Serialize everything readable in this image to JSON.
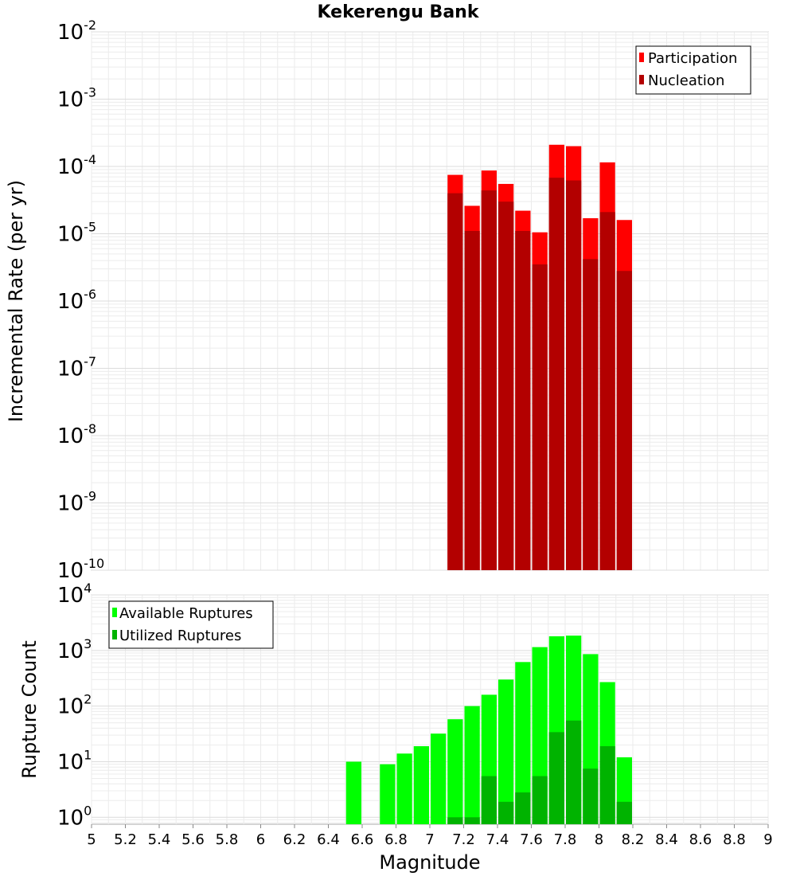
{
  "chart_data": [
    {
      "type": "bar",
      "title": "Kekerengu Bank",
      "xlabel": "Magnitude",
      "ylabel": "Incremental Rate (per yr)",
      "yscale": "log",
      "xlim": [
        5,
        9
      ],
      "ylim": [
        1e-10,
        0.01
      ],
      "x_tick_values": [
        5,
        5.2,
        5.4,
        5.6,
        5.8,
        6,
        6.2,
        6.4,
        6.6,
        6.8,
        7,
        7.2,
        7.4,
        7.6,
        7.8,
        8,
        8.2,
        8.4,
        8.6,
        8.8,
        9
      ],
      "x_tick_labels": [
        "5",
        "5.2",
        "5.4",
        "5.6",
        "5.8",
        "6",
        "6.2",
        "6.4",
        "6.6",
        "6.8",
        "7",
        "7.2",
        "7.4",
        "7.6",
        "7.8",
        "8",
        "8.2",
        "8.4",
        "8.6",
        "8.8",
        "9"
      ],
      "y_ticks": [
        {
          "base": "10",
          "exp": "-2",
          "value": 0.01
        },
        {
          "base": "10",
          "exp": "-3",
          "value": 0.001
        },
        {
          "base": "10",
          "exp": "-4",
          "value": 0.0001
        },
        {
          "base": "10",
          "exp": "-5",
          "value": 1e-05
        },
        {
          "base": "10",
          "exp": "-6",
          "value": 1e-06
        },
        {
          "base": "10",
          "exp": "-7",
          "value": 1e-07
        },
        {
          "base": "10",
          "exp": "-8",
          "value": 1e-08
        },
        {
          "base": "10",
          "exp": "-9",
          "value": 1e-09
        },
        {
          "base": "10",
          "exp": "-10",
          "value": 1e-10
        }
      ],
      "grid": true,
      "legend_position": "top-right",
      "bin_width": 0.1,
      "x": [
        7.15,
        7.25,
        7.35,
        7.45,
        7.55,
        7.65,
        7.75,
        7.85,
        7.95,
        8.05,
        8.15
      ],
      "series": [
        {
          "name": "Participation",
          "color": "#ff0000",
          "values": [
            7.5e-05,
            2.6e-05,
            8.7e-05,
            5.5e-05,
            2.2e-05,
            1.05e-05,
            0.00021,
            0.0002,
            1.7e-05,
            0.000115,
            1.6e-05
          ]
        },
        {
          "name": "Nucleation",
          "color": "#b30000",
          "values": [
            4e-05,
            1.1e-05,
            4.4e-05,
            3e-05,
            1.1e-05,
            3.5e-06,
            6.8e-05,
            6.2e-05,
            4.2e-06,
            2.1e-05,
            2.8e-06
          ]
        }
      ]
    },
    {
      "type": "bar",
      "title": "",
      "xlabel": "Magnitude",
      "ylabel": "Rupture Count",
      "yscale": "log",
      "xlim": [
        5,
        9
      ],
      "ylim": [
        0.75,
        10000.0
      ],
      "y_ticks": [
        {
          "base": "10",
          "exp": "4",
          "value": 10000.0
        },
        {
          "base": "10",
          "exp": "3",
          "value": 1000.0
        },
        {
          "base": "10",
          "exp": "2",
          "value": 100.0
        },
        {
          "base": "10",
          "exp": "1",
          "value": 10.0
        },
        {
          "base": "10",
          "exp": "0",
          "value": 1
        }
      ],
      "grid": true,
      "legend_position": "top-left",
      "bin_width": 0.1,
      "x": [
        6.55,
        6.75,
        6.85,
        6.95,
        7.05,
        7.15,
        7.25,
        7.35,
        7.45,
        7.55,
        7.65,
        7.75,
        7.85,
        7.95,
        8.05,
        8.15
      ],
      "series": [
        {
          "name": "Available Ruptures",
          "color": "#00ff00",
          "values": [
            10,
            9,
            14,
            19,
            32,
            58,
            100,
            160,
            300,
            620,
            1150,
            1800,
            1850,
            860,
            270,
            12
          ]
        },
        {
          "name": "Utilized Ruptures",
          "color": "#00b300",
          "values": [
            0,
            0,
            0,
            0,
            0,
            1,
            1,
            5.5,
            1.9,
            2.8,
            5.5,
            34,
            55,
            7.5,
            19,
            1.9
          ]
        }
      ]
    }
  ]
}
